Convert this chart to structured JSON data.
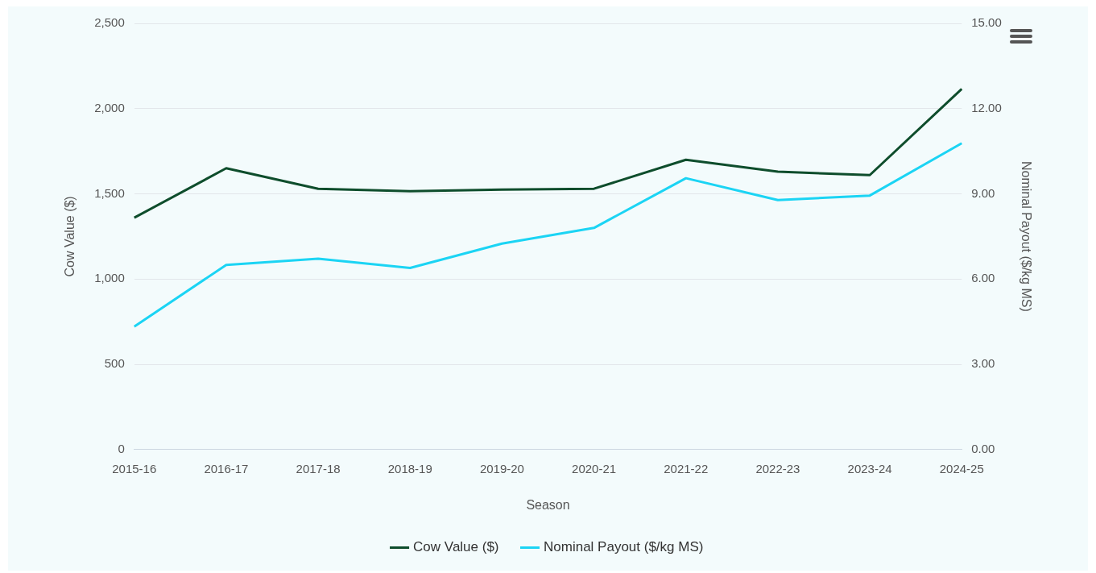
{
  "chart_data": {
    "type": "line",
    "xlabel": "Season",
    "ylabel": "Cow Value ($)",
    "y2label": "Nominal Payout ($/kg MS)",
    "categories": [
      "2015-16",
      "2016-17",
      "2017-18",
      "2018-19",
      "2019-20",
      "2020-21",
      "2021-22",
      "2022-23",
      "2023-24",
      "2024-25"
    ],
    "series": [
      {
        "name": "Cow Value ($)",
        "color": "#0e4d2c",
        "values": [
          1360,
          1650,
          1530,
          1515,
          1525,
          1530,
          1700,
          1630,
          1610,
          2115
        ]
      },
      {
        "name": "Nominal Payout ($/kg MS)",
        "color": "#1bd4f4",
        "axis": "y2",
        "values": [
          4.33,
          6.5,
          6.72,
          6.39,
          7.25,
          7.8,
          9.55,
          8.78,
          8.94,
          10.78
        ]
      }
    ],
    "ylim": [
      0,
      2500
    ],
    "yticks": [
      0,
      500,
      {
        "value": 1000,
        "label": "1,000"
      },
      {
        "value": 1500,
        "label": "1,500"
      },
      {
        "value": 2000,
        "label": "2,000"
      },
      {
        "value": 2500,
        "label": "2,500"
      }
    ],
    "y2lim": [
      0,
      15
    ],
    "y2ticks": [
      {
        "value": 0,
        "label": "0.00"
      },
      {
        "value": 3,
        "label": "3.00"
      },
      {
        "value": 6,
        "label": "6.00"
      },
      {
        "value": 9,
        "label": "9.00"
      },
      {
        "value": 12,
        "label": "12.00"
      },
      {
        "value": 15,
        "label": "15.00"
      }
    ],
    "grid": "y",
    "legend": "bottom",
    "marker": "none",
    "line_style": "solid"
  }
}
